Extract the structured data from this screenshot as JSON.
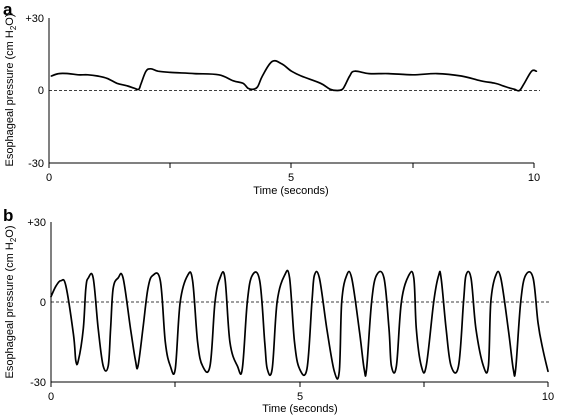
{
  "chart_data": [
    {
      "panel_label": "a",
      "type": "line",
      "xlabel": "Time (seconds)",
      "ylabel": "Esophageal pressure (cm H2O)",
      "xlim": [
        0,
        10
      ],
      "ylim": [
        -30,
        30
      ],
      "x_ticks": [
        0,
        2.5,
        5,
        7.5,
        10
      ],
      "x_tick_labels": [
        "0",
        "",
        "5",
        "",
        "10"
      ],
      "y_ticks": [
        30,
        0,
        -30
      ],
      "y_tick_labels": [
        "+30",
        "0",
        "-30"
      ],
      "reference_line": 0,
      "series": [
        {
          "x": [
            0.05,
            0.2,
            0.4,
            0.6,
            0.8,
            1.0,
            1.2,
            1.4,
            1.6,
            1.75,
            1.85,
            1.9,
            2.0,
            2.1,
            2.25,
            2.5,
            3.0,
            3.5,
            3.8,
            4.0,
            4.1,
            4.2,
            4.3,
            4.4,
            4.6,
            4.8,
            5.0,
            5.2,
            5.6,
            5.8,
            5.95,
            6.05,
            6.1,
            6.2,
            6.3,
            6.6,
            7.0,
            7.5,
            8.0,
            8.5,
            8.9,
            9.2,
            9.35,
            9.5,
            9.6,
            9.7,
            9.8,
            9.95,
            10.05
          ],
          "y": [
            6,
            7,
            7,
            6.5,
            6.5,
            6,
            5,
            3,
            2,
            1,
            0.5,
            3,
            8,
            9,
            8,
            7.5,
            7,
            6.5,
            4,
            3,
            1,
            0.5,
            1.5,
            6,
            12,
            11,
            8,
            6,
            3,
            0.5,
            0,
            0.5,
            2,
            6,
            8,
            7,
            7,
            6.5,
            7,
            6,
            4,
            3,
            2,
            1,
            0.5,
            0,
            3,
            8,
            8
          ]
        }
      ]
    },
    {
      "panel_label": "b",
      "type": "line",
      "xlabel": "Time (seconds)",
      "ylabel": "Esophageal pressure (cm H2O)",
      "xlim": [
        0,
        10
      ],
      "ylim": [
        -30,
        30
      ],
      "x_ticks": [
        0,
        2.5,
        5,
        7.5,
        10
      ],
      "x_tick_labels": [
        "0",
        "",
        "5",
        "",
        "10"
      ],
      "y_ticks": [
        30,
        0,
        -30
      ],
      "y_tick_labels": [
        "+30",
        "0",
        "-30"
      ],
      "reference_line": 0,
      "series": [
        {
          "x": [
            0,
            0.1,
            0.2,
            0.3,
            0.45,
            0.5,
            0.55,
            0.65,
            0.7,
            0.75,
            0.85,
            0.95,
            1.05,
            1.15,
            1.2,
            1.25,
            1.35,
            1.45,
            1.6,
            1.7,
            1.75,
            1.85,
            1.95,
            2.05,
            2.2,
            2.3,
            2.4,
            2.5,
            2.6,
            2.75,
            2.85,
            2.95,
            3.05,
            3.2,
            3.3,
            3.4,
            3.5,
            3.6,
            3.75,
            3.85,
            3.95,
            4.05,
            4.2,
            4.3,
            4.35,
            4.45,
            4.55,
            4.7,
            4.8,
            4.9,
            5.0,
            5.15,
            5.25,
            5.3,
            5.4,
            5.55,
            5.7,
            5.8,
            5.85,
            5.95,
            6.05,
            6.2,
            6.3,
            6.35,
            6.45,
            6.55,
            6.7,
            6.8,
            6.85,
            6.95,
            7.05,
            7.2,
            7.3,
            7.35,
            7.45,
            7.55,
            7.7,
            7.8,
            7.85,
            7.95,
            8.05,
            8.2,
            8.3,
            8.35,
            8.45,
            8.55,
            8.7,
            8.8,
            8.85,
            8.95,
            9.05,
            9.2,
            9.3,
            9.35,
            9.45,
            9.55,
            9.7,
            9.8,
            9.9,
            10.0
          ],
          "y": [
            2,
            6,
            8,
            6,
            -12,
            -22,
            -22,
            -10,
            5,
            9,
            9,
            -10,
            -24,
            -24,
            -10,
            5,
            9,
            9,
            -10,
            -22,
            -24,
            -10,
            5,
            10,
            8,
            -15,
            -24,
            -25,
            0,
            10,
            8,
            -15,
            -24,
            -24,
            0,
            9,
            9,
            -15,
            -24,
            -25,
            0,
            10,
            8,
            -15,
            -25,
            -25,
            0,
            10,
            9,
            -15,
            -25,
            -25,
            0,
            10,
            9,
            -10,
            -26,
            -26,
            0,
            10,
            9,
            -10,
            -25,
            -25,
            0,
            10,
            9,
            -10,
            -24,
            -24,
            0,
            10,
            9,
            -10,
            -24,
            -24,
            0,
            10,
            9,
            -10,
            -24,
            -24,
            0,
            10,
            9,
            -10,
            -24,
            -24,
            0,
            10,
            9,
            -10,
            -25,
            -25,
            0,
            10,
            9,
            -8,
            -18,
            -26
          ]
        }
      ]
    }
  ]
}
